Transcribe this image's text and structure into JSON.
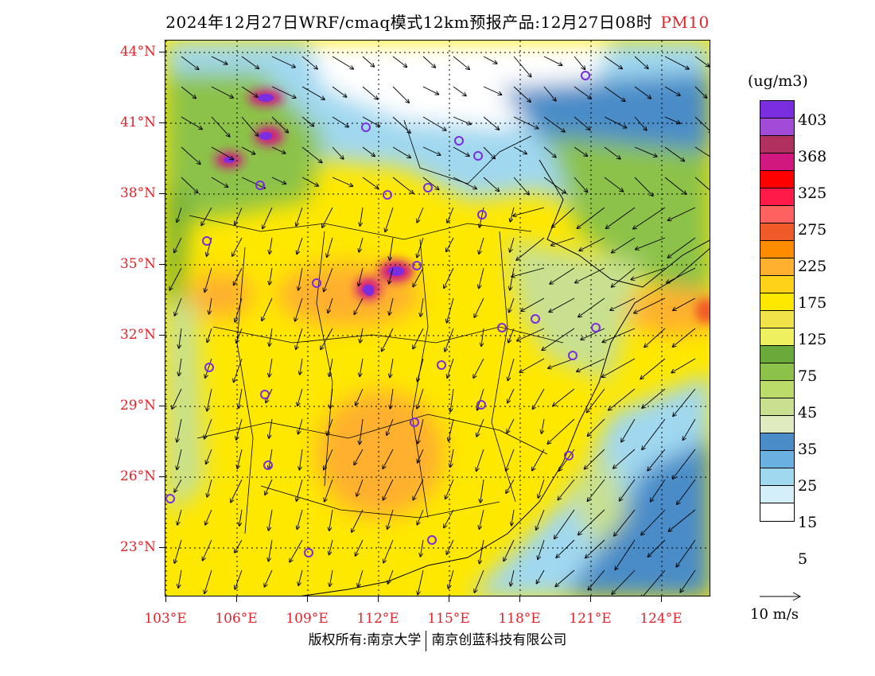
{
  "title": {
    "main": "2024年12月27日WRF/cmaq模式12km预报产品:12月27日08时",
    "species": "PM10"
  },
  "axes": {
    "lat_labels": [
      "44°N",
      "41°N",
      "38°N",
      "35°N",
      "32°N",
      "29°N",
      "26°N",
      "23°N"
    ],
    "lon_labels": [
      "103°E",
      "106°E",
      "109°E",
      "112°E",
      "115°E",
      "118°E",
      "121°E",
      "124°E"
    ]
  },
  "legend": {
    "unit": "(ug/m3)",
    "labels": [
      "403",
      "368",
      "325",
      "275",
      "225",
      "175",
      "125",
      "75",
      "45",
      "35",
      "25",
      "15",
      "5"
    ],
    "colors": [
      "#7b2de0",
      "#a24bd8",
      "#b03060",
      "#d01880",
      "#ff0000",
      "#ff1a4a",
      "#ff6060",
      "#f05a28",
      "#ff8c00",
      "#ffb02e",
      "#ffd21a",
      "#ffe800",
      "#f2e24a",
      "#eef060",
      "#6aaa3a",
      "#8cc24a",
      "#bcdc6a",
      "#c8e090",
      "#e0ecc0",
      "#4a8cc8",
      "#6ab0e0",
      "#a0d8f0",
      "#d4eefa",
      "#ffffff"
    ]
  },
  "wind_key": {
    "label": "10 m/s"
  },
  "footer": {
    "left": "版权所有:南京大学",
    "right": "南京创蓝科技有限公司"
  },
  "map_colors": {
    "white": "#ffffff",
    "lightblue": "#a0d8f0",
    "blue": "#4a8cc8",
    "lightgreen": "#c8e090",
    "green": "#8cc24a",
    "yellow": "#ffe800",
    "paleyellow": "#f2e24a",
    "orange": "#ffb02e",
    "darkorange": "#f05a28",
    "magenta": "#d01880",
    "purple": "#7b2de0"
  }
}
